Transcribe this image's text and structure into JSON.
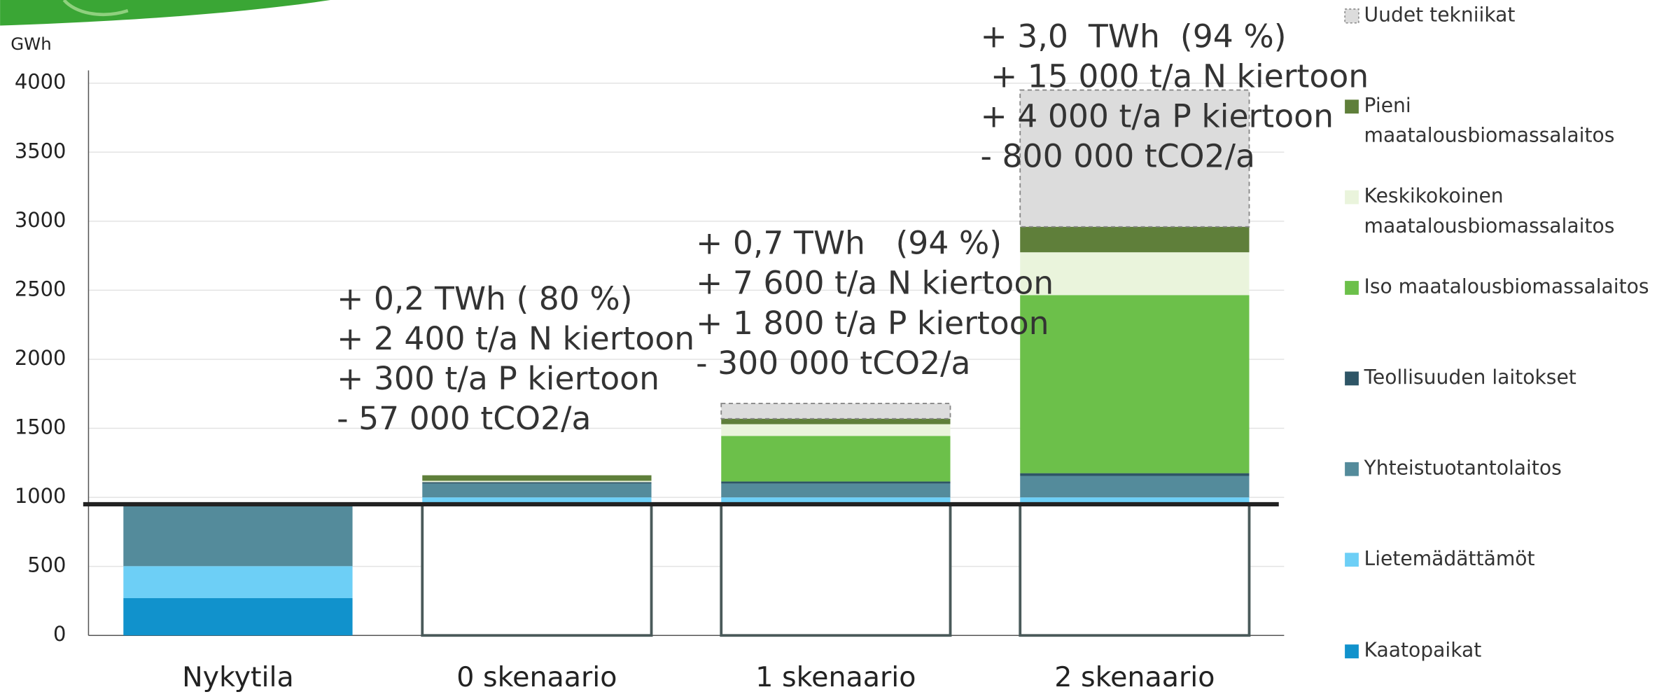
{
  "chart_data": {
    "type": "stacked_bar",
    "y_label": "GWh",
    "categories": [
      "Nykytila",
      "0 skenaario",
      "1 skenaario",
      "2 skenaario"
    ],
    "baseline": 950,
    "baseline_boxes": [
      false,
      true,
      true,
      true
    ],
    "ylim": [
      0,
      4000
    ],
    "yticks": [
      0,
      500,
      1000,
      1500,
      2000,
      2500,
      3000,
      3500,
      4000
    ],
    "grid": true,
    "series": [
      {
        "name": "Kaatopaikat",
        "color": "#1192cc",
        "values": [
          270,
          null,
          null,
          null
        ]
      },
      {
        "name": "Lietemädättämöt",
        "color": "#6dcff6",
        "values": [
          232,
          50,
          50,
          50
        ]
      },
      {
        "name": "Yhteistuotantolaitos",
        "color": "#548b9b",
        "values": [
          448,
          100,
          100,
          155
        ]
      },
      {
        "name": "Teollisuuden laitokset",
        "color": "#2e5566",
        "values": [
          null,
          10,
          15,
          20
        ]
      },
      {
        "name": "Iso maatalousbiomassalaitos",
        "color": "#6cc04a",
        "values": [
          null,
          0,
          330,
          1290
        ]
      },
      {
        "name": "Keskikokoinen maatalousbiomassalaitos",
        "color": "#eaf4dc",
        "values": [
          null,
          10,
          85,
          310
        ]
      },
      {
        "name": "Pieni maatalousbiomassalaitos",
        "color": "#5f7f3a",
        "values": [
          null,
          40,
          40,
          185
        ]
      },
      {
        "name": "Uudet tekniikat",
        "color": "#dcdcdc",
        "dashed": true,
        "values": [
          null,
          0,
          110,
          990
        ]
      }
    ],
    "annotations": [
      [
        "+ 0,2 TWh ( 80 %)",
        "+ 2 400 t/a N kiertoon",
        "+ 300 t/a P kiertoon",
        "- 57 000 tCO2/a"
      ],
      [
        "+ 0,7 TWh   (94 %)",
        "+ 7 600 t/a N kiertoon",
        "+ 1 800 t/a P kiertoon",
        "- 300 000 tCO2/a"
      ],
      [
        "+ 3,0  TWh  (94 %)",
        " + 15 000 t/a N kiertoon",
        "+ 4 000 t/a P kiertoon",
        "- 800 000 tCO2/a"
      ]
    ]
  }
}
